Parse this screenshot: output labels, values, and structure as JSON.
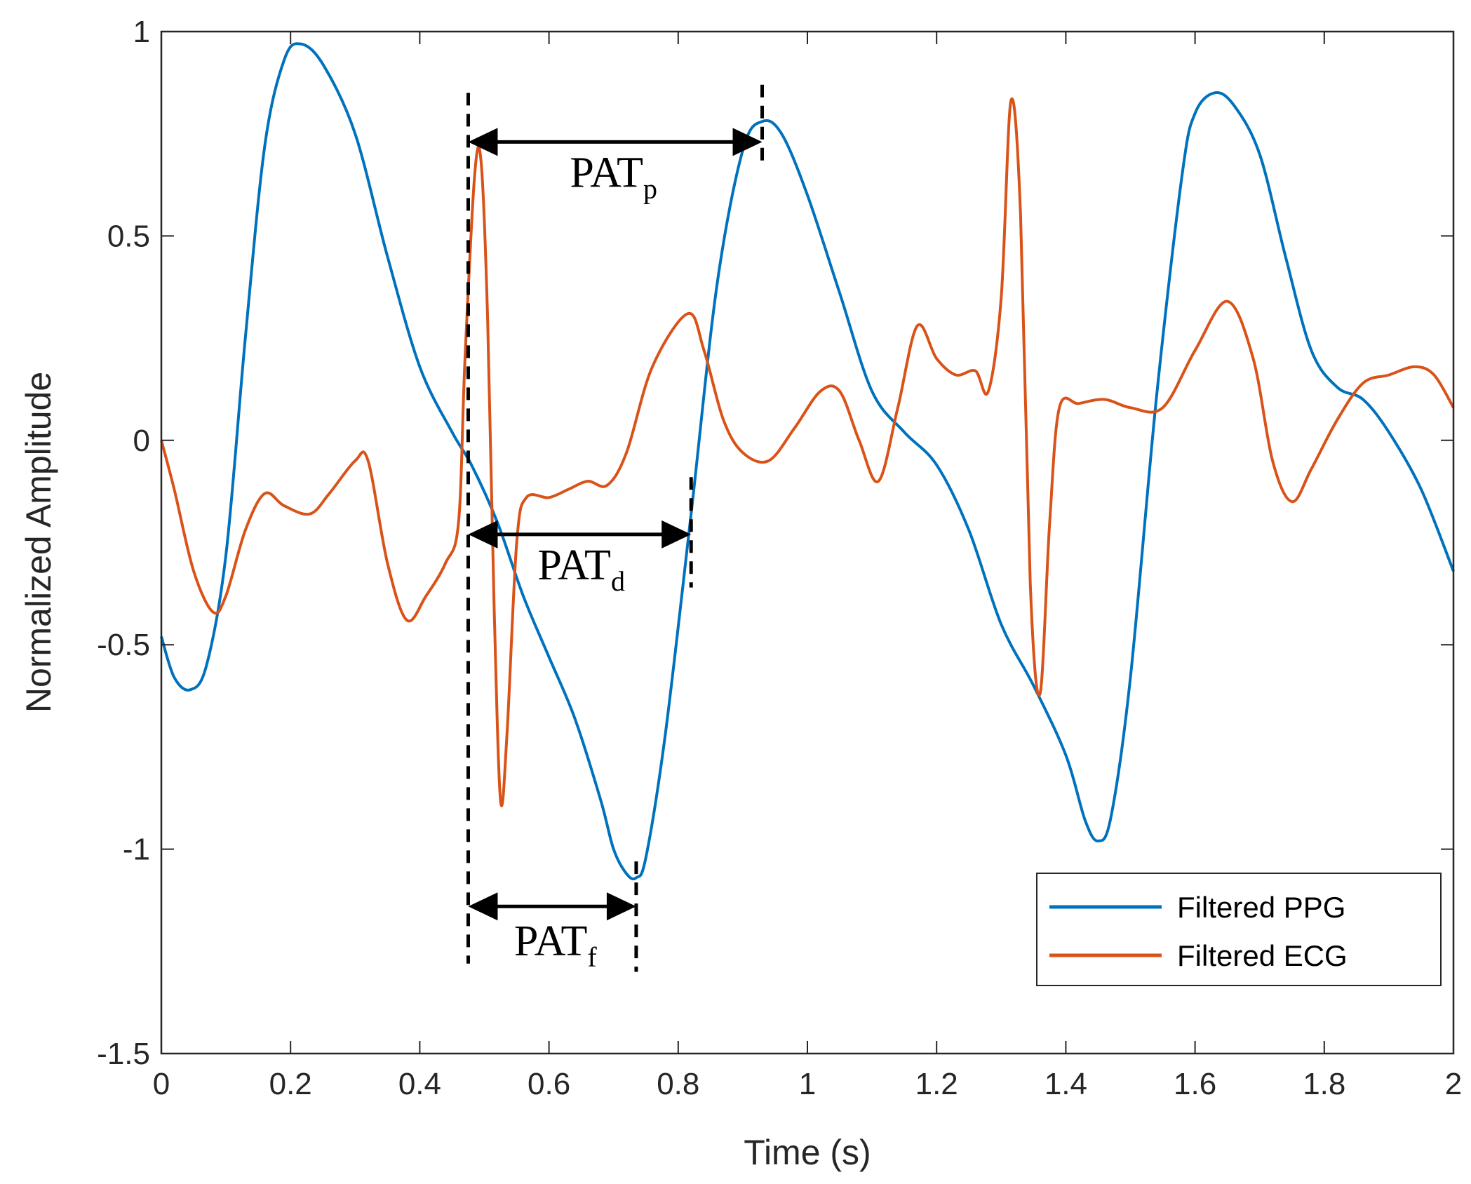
{
  "chart_data": {
    "type": "line",
    "title": "",
    "xlabel": "Time (s)",
    "ylabel": "Normalized Amplitude",
    "xlim": [
      0,
      2
    ],
    "ylim": [
      -1.5,
      1
    ],
    "xticks": [
      0,
      0.2,
      0.4,
      0.6,
      0.8,
      1,
      1.2,
      1.4,
      1.6,
      1.8,
      2
    ],
    "xtick_labels": [
      "0",
      "0.2",
      "0.4",
      "0.6",
      "0.8",
      "1",
      "1.2",
      "1.4",
      "1.6",
      "1.8",
      "2"
    ],
    "yticks": [
      1,
      0.5,
      0,
      -0.5,
      -1,
      -1.5
    ],
    "ytick_labels": [
      "1",
      "0.5",
      "0",
      "-0.5",
      "-1",
      "-1.5"
    ],
    "grid": false,
    "legend_position": "bottom-right",
    "series": [
      {
        "name": "Filtered PPG",
        "color": "#0072BD",
        "points": [
          [
            0,
            -0.48
          ],
          [
            0.02,
            -0.58
          ],
          [
            0.045,
            -0.61
          ],
          [
            0.07,
            -0.55
          ],
          [
            0.1,
            -0.28
          ],
          [
            0.13,
            0.25
          ],
          [
            0.16,
            0.72
          ],
          [
            0.19,
            0.93
          ],
          [
            0.215,
            0.97
          ],
          [
            0.25,
            0.92
          ],
          [
            0.3,
            0.75
          ],
          [
            0.35,
            0.45
          ],
          [
            0.4,
            0.18
          ],
          [
            0.45,
            0.02
          ],
          [
            0.48,
            -0.06
          ],
          [
            0.52,
            -0.2
          ],
          [
            0.56,
            -0.38
          ],
          [
            0.6,
            -0.53
          ],
          [
            0.64,
            -0.68
          ],
          [
            0.68,
            -0.88
          ],
          [
            0.7,
            -1.0
          ],
          [
            0.72,
            -1.06
          ],
          [
            0.735,
            -1.07
          ],
          [
            0.75,
            -1.02
          ],
          [
            0.78,
            -0.72
          ],
          [
            0.82,
            -0.18
          ],
          [
            0.86,
            0.38
          ],
          [
            0.9,
            0.71
          ],
          [
            0.93,
            0.78
          ],
          [
            0.96,
            0.75
          ],
          [
            1.0,
            0.6
          ],
          [
            1.05,
            0.36
          ],
          [
            1.1,
            0.12
          ],
          [
            1.15,
            0.02
          ],
          [
            1.2,
            -0.06
          ],
          [
            1.25,
            -0.22
          ],
          [
            1.3,
            -0.45
          ],
          [
            1.35,
            -0.6
          ],
          [
            1.4,
            -0.77
          ],
          [
            1.43,
            -0.93
          ],
          [
            1.45,
            -0.98
          ],
          [
            1.47,
            -0.92
          ],
          [
            1.5,
            -0.58
          ],
          [
            1.54,
            0.1
          ],
          [
            1.58,
            0.65
          ],
          [
            1.6,
            0.8
          ],
          [
            1.63,
            0.85
          ],
          [
            1.66,
            0.82
          ],
          [
            1.7,
            0.7
          ],
          [
            1.74,
            0.45
          ],
          [
            1.78,
            0.22
          ],
          [
            1.82,
            0.13
          ],
          [
            1.86,
            0.1
          ],
          [
            1.9,
            0.02
          ],
          [
            1.95,
            -0.12
          ],
          [
            2.0,
            -0.32
          ]
        ]
      },
      {
        "name": "Filtered ECG",
        "color": "#D95319",
        "points": [
          [
            0,
            0
          ],
          [
            0.02,
            -0.12
          ],
          [
            0.05,
            -0.32
          ],
          [
            0.08,
            -0.42
          ],
          [
            0.1,
            -0.38
          ],
          [
            0.13,
            -0.22
          ],
          [
            0.16,
            -0.13
          ],
          [
            0.19,
            -0.16
          ],
          [
            0.23,
            -0.18
          ],
          [
            0.26,
            -0.13
          ],
          [
            0.3,
            -0.05
          ],
          [
            0.32,
            -0.05
          ],
          [
            0.35,
            -0.3
          ],
          [
            0.38,
            -0.44
          ],
          [
            0.41,
            -0.38
          ],
          [
            0.44,
            -0.3
          ],
          [
            0.46,
            -0.2
          ],
          [
            0.47,
            0.2
          ],
          [
            0.485,
            0.65
          ],
          [
            0.495,
            0.68
          ],
          [
            0.505,
            0.3
          ],
          [
            0.515,
            -0.4
          ],
          [
            0.525,
            -0.88
          ],
          [
            0.535,
            -0.72
          ],
          [
            0.55,
            -0.25
          ],
          [
            0.565,
            -0.14
          ],
          [
            0.6,
            -0.14
          ],
          [
            0.63,
            -0.12
          ],
          [
            0.66,
            -0.1
          ],
          [
            0.69,
            -0.11
          ],
          [
            0.72,
            -0.03
          ],
          [
            0.76,
            0.18
          ],
          [
            0.815,
            0.31
          ],
          [
            0.84,
            0.22
          ],
          [
            0.87,
            0.05
          ],
          [
            0.9,
            -0.03
          ],
          [
            0.94,
            -0.05
          ],
          [
            0.98,
            0.03
          ],
          [
            1.02,
            0.12
          ],
          [
            1.05,
            0.12
          ],
          [
            1.08,
            0.0
          ],
          [
            1.11,
            -0.1
          ],
          [
            1.14,
            0.08
          ],
          [
            1.17,
            0.28
          ],
          [
            1.2,
            0.2
          ],
          [
            1.23,
            0.16
          ],
          [
            1.26,
            0.17
          ],
          [
            1.28,
            0.12
          ],
          [
            1.3,
            0.35
          ],
          [
            1.315,
            0.83
          ],
          [
            1.33,
            0.55
          ],
          [
            1.345,
            -0.35
          ],
          [
            1.36,
            -0.62
          ],
          [
            1.375,
            -0.2
          ],
          [
            1.39,
            0.08
          ],
          [
            1.42,
            0.09
          ],
          [
            1.46,
            0.1
          ],
          [
            1.5,
            0.08
          ],
          [
            1.55,
            0.08
          ],
          [
            1.6,
            0.22
          ],
          [
            1.65,
            0.34
          ],
          [
            1.69,
            0.2
          ],
          [
            1.72,
            -0.05
          ],
          [
            1.75,
            -0.15
          ],
          [
            1.78,
            -0.07
          ],
          [
            1.82,
            0.05
          ],
          [
            1.86,
            0.14
          ],
          [
            1.9,
            0.16
          ],
          [
            1.94,
            0.18
          ],
          [
            1.97,
            0.16
          ],
          [
            2.0,
            0.08
          ]
        ]
      }
    ],
    "annotations": [
      {
        "base": "PAT",
        "sub": "p",
        "x_start": 0.475,
        "x_end": 0.93,
        "arrow_y": 0.73,
        "label_x": 0.7,
        "label_y": 0.62
      },
      {
        "base": "PAT",
        "sub": "d",
        "x_start": 0.475,
        "x_end": 0.82,
        "arrow_y": -0.23,
        "label_x": 0.65,
        "label_y": -0.34
      },
      {
        "base": "PAT",
        "sub": "f",
        "x_start": 0.475,
        "x_end": 0.735,
        "arrow_y": -1.14,
        "label_x": 0.61,
        "label_y": -1.26
      }
    ],
    "guide_lines": [
      {
        "x": 0.475,
        "y_from": 0.85,
        "y_to": -1.28
      },
      {
        "x": 0.93,
        "y_from": 0.87,
        "y_to": 0.67
      },
      {
        "x": 0.82,
        "y_from": -0.09,
        "y_to": -0.36
      },
      {
        "x": 0.735,
        "y_from": -1.03,
        "y_to": -1.3
      }
    ]
  }
}
